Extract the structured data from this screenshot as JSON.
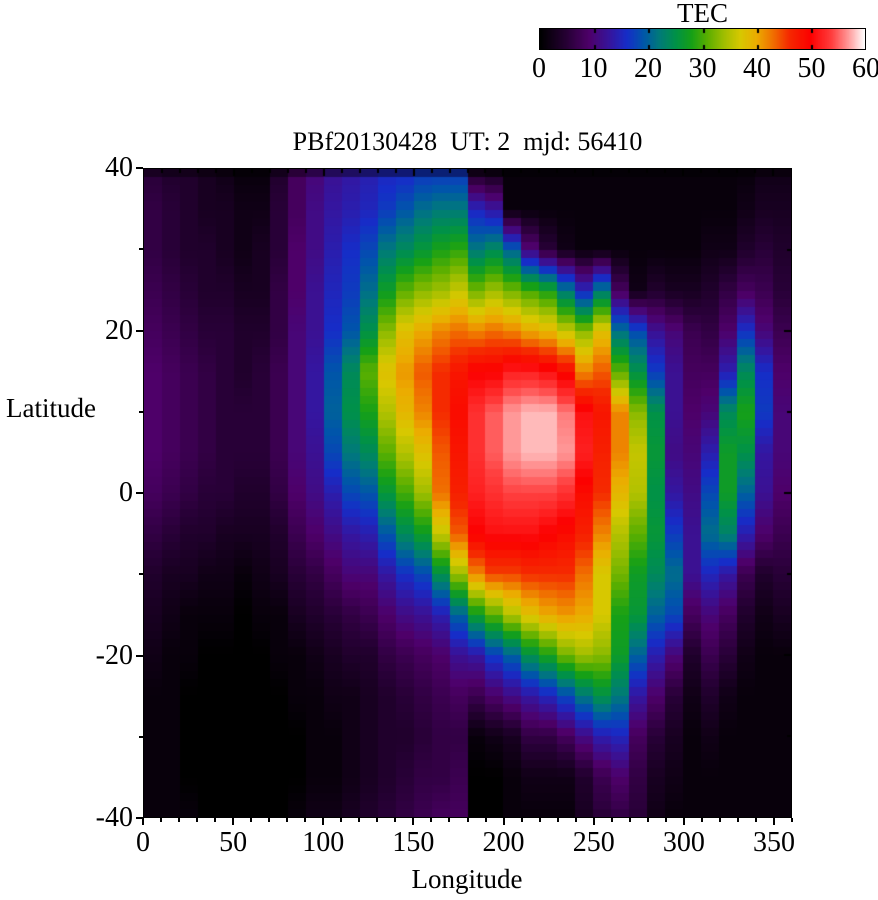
{
  "colorbar": {
    "title": "TEC",
    "tick_labels": [
      "0",
      "10",
      "20",
      "30",
      "40",
      "50",
      "60"
    ],
    "min": 0,
    "max": 60
  },
  "plot": {
    "title": "PBf20130428  UT: 2  mjd: 56410",
    "xlabel": "Longitude",
    "ylabel": "Latitude",
    "x_tick_values": [
      0,
      50,
      100,
      150,
      200,
      250,
      300,
      350
    ],
    "y_tick_values": [
      40,
      20,
      0,
      -20,
      -40
    ],
    "xlim": [
      0,
      360
    ],
    "ylim": [
      -40,
      40
    ],
    "frame_color": "#000000",
    "background_color": "#ffffff"
  },
  "chart_data": {
    "type": "heatmap",
    "title": "PBf20130428  UT: 2  mjd: 56410",
    "xlabel": "Longitude",
    "ylabel": "Latitude",
    "values_unit": "TEC",
    "value_range": [
      0,
      60
    ],
    "lon_start": 0,
    "lon_step": 10,
    "lat_values": [
      40,
      35,
      30,
      25,
      20,
      15,
      10,
      5,
      0,
      -5,
      -10,
      -15,
      -20,
      -25,
      -30,
      -35,
      -40
    ],
    "palette_stops": [
      [
        0,
        0,
        0,
        0
      ],
      [
        5,
        40,
        0,
        55
      ],
      [
        9,
        78,
        0,
        105
      ],
      [
        13,
        52,
        22,
        160
      ],
      [
        16,
        22,
        45,
        200
      ],
      [
        19,
        0,
        85,
        170
      ],
      [
        22,
        0,
        122,
        122
      ],
      [
        25,
        0,
        145,
        72
      ],
      [
        28,
        22,
        160,
        22
      ],
      [
        31,
        92,
        175,
        0
      ],
      [
        34,
        160,
        190,
        0
      ],
      [
        37,
        215,
        200,
        0
      ],
      [
        40,
        235,
        172,
        0
      ],
      [
        43,
        240,
        112,
        0
      ],
      [
        46,
        245,
        42,
        0
      ],
      [
        50,
        252,
        0,
        0
      ],
      [
        54,
        255,
        64,
        64
      ],
      [
        57,
        255,
        152,
        152
      ],
      [
        60,
        255,
        255,
        255
      ]
    ],
    "columns": [
      [
        5,
        6,
        6,
        7,
        8,
        9,
        9,
        9,
        8,
        6,
        4,
        3,
        2,
        1,
        1,
        1,
        1
      ],
      [
        4,
        5,
        5,
        6,
        7,
        8,
        8,
        8,
        7,
        5,
        3,
        2,
        1,
        1,
        1,
        1,
        1
      ],
      [
        4,
        4,
        4,
        5,
        6,
        7,
        7,
        7,
        6,
        4,
        3,
        1,
        1,
        0,
        0,
        0,
        1
      ],
      [
        3,
        3,
        4,
        4,
        5,
        6,
        6,
        6,
        5,
        4,
        2,
        1,
        0,
        0,
        0,
        0,
        0
      ],
      [
        2,
        3,
        3,
        4,
        5,
        5,
        5,
        5,
        5,
        3,
        2,
        1,
        0,
        0,
        0,
        0,
        0
      ],
      [
        1,
        2,
        2,
        3,
        4,
        4,
        5,
        5,
        4,
        3,
        1,
        0,
        0,
        0,
        0,
        0,
        0
      ],
      [
        1,
        2,
        3,
        3,
        4,
        5,
        5,
        5,
        4,
        3,
        2,
        1,
        0,
        0,
        0,
        0,
        0
      ],
      [
        4,
        5,
        5,
        6,
        6,
        7,
        7,
        7,
        6,
        4,
        3,
        1,
        1,
        0,
        0,
        0,
        0
      ],
      [
        8,
        8,
        9,
        9,
        10,
        10,
        10,
        10,
        9,
        7,
        5,
        3,
        1,
        1,
        0,
        0,
        1
      ],
      [
        10,
        11,
        11,
        12,
        12,
        13,
        13,
        12,
        11,
        9,
        6,
        4,
        2,
        1,
        1,
        1,
        2
      ],
      [
        12,
        13,
        14,
        15,
        16,
        19,
        20,
        18,
        14,
        11,
        8,
        5,
        3,
        2,
        1,
        1,
        2
      ],
      [
        13,
        14,
        16,
        17,
        19,
        24,
        25,
        22,
        18,
        13,
        10,
        6,
        4,
        2,
        2,
        2,
        3
      ],
      [
        14,
        15,
        18,
        21,
        25,
        31,
        28,
        24,
        19,
        14,
        10,
        7,
        4,
        3,
        3,
        3,
        4
      ],
      [
        15,
        17,
        22,
        27,
        33,
        38,
        35,
        31,
        26,
        19,
        13,
        9,
        6,
        4,
        4,
        4,
        5
      ],
      [
        15,
        19,
        24,
        31,
        38,
        41,
        39,
        35,
        30,
        24,
        16,
        11,
        7,
        5,
        4,
        5,
        6
      ],
      [
        16,
        21,
        26,
        33,
        40,
        44,
        42,
        38,
        34,
        27,
        18,
        12,
        8,
        6,
        5,
        6,
        7
      ],
      [
        16,
        22,
        28,
        34,
        42,
        46,
        46,
        44,
        43,
        36,
        25,
        14,
        9,
        7,
        6,
        6,
        8
      ],
      [
        16,
        22,
        29,
        36,
        43,
        48,
        49,
        48,
        47,
        44,
        34,
        20,
        12,
        8,
        6,
        7,
        8
      ],
      [
        2,
        15,
        22,
        32,
        42,
        50,
        53,
        53,
        52,
        50,
        42,
        27,
        13,
        7,
        1,
        0,
        0
      ],
      [
        1,
        13,
        24,
        34,
        43,
        50,
        55,
        55,
        53,
        51,
        45,
        31,
        17,
        9,
        2,
        0,
        0
      ],
      [
        1,
        1,
        20,
        32,
        42,
        52,
        57,
        57,
        54,
        51,
        45,
        35,
        20,
        11,
        3,
        1,
        1
      ],
      [
        1,
        1,
        10,
        30,
        40,
        52,
        58,
        58,
        54,
        51,
        46,
        38,
        25,
        13,
        6,
        2,
        1
      ],
      [
        1,
        1,
        5,
        28,
        39,
        51,
        58,
        58,
        54,
        50,
        46,
        40,
        28,
        15,
        6,
        2,
        1
      ],
      [
        1,
        1,
        2,
        22,
        36,
        49,
        56,
        57,
        53,
        49,
        46,
        41,
        32,
        18,
        8,
        2,
        1
      ],
      [
        1,
        1,
        1,
        15,
        33,
        42,
        51,
        52,
        49,
        47,
        43,
        40,
        34,
        22,
        11,
        4,
        3
      ],
      [
        1,
        1,
        1,
        22,
        38,
        44,
        48,
        47,
        46,
        42,
        37,
        37,
        33,
        25,
        14,
        7,
        5
      ],
      [
        1,
        1,
        1,
        8,
        21,
        31,
        42,
        42,
        39,
        35,
        32,
        28,
        27,
        22,
        15,
        9,
        6
      ],
      [
        1,
        1,
        1,
        2,
        18,
        25,
        33,
        36,
        35,
        31,
        27,
        26,
        20,
        13,
        8,
        6,
        5
      ],
      [
        1,
        1,
        1,
        4,
        12,
        17,
        25,
        26,
        25,
        26,
        24,
        20,
        14,
        9,
        5,
        3,
        2
      ],
      [
        1,
        1,
        1,
        3,
        10,
        12,
        12,
        11,
        13,
        17,
        21,
        18,
        10,
        5,
        3,
        2,
        1
      ],
      [
        1,
        1,
        1,
        3,
        7,
        8,
        9,
        10,
        11,
        12,
        12,
        8,
        4,
        2,
        1,
        1,
        1
      ],
      [
        1,
        1,
        2,
        4,
        6,
        8,
        10,
        14,
        18,
        21,
        15,
        10,
        7,
        4,
        2,
        1,
        1
      ],
      [
        1,
        1,
        2,
        6,
        9,
        14,
        24,
        27,
        27,
        23,
        13,
        8,
        5,
        2,
        1,
        1,
        1
      ],
      [
        1,
        2,
        4,
        8,
        16,
        24,
        28,
        25,
        20,
        14,
        7,
        4,
        2,
        1,
        1,
        1,
        1
      ],
      [
        2,
        3,
        5,
        7,
        10,
        16,
        17,
        13,
        12,
        9,
        4,
        2,
        1,
        1,
        1,
        1,
        1
      ],
      [
        2,
        3,
        4,
        5,
        7,
        9,
        10,
        10,
        9,
        7,
        5,
        3,
        1,
        1,
        1,
        1,
        1
      ]
    ]
  }
}
